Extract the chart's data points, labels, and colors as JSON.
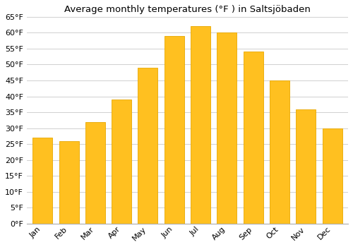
{
  "title": "Average monthly temperatures (°F ) in Saltsjöbaden",
  "months": [
    "Jan",
    "Feb",
    "Mar",
    "Apr",
    "May",
    "Jun",
    "Jul",
    "Aug",
    "Sep",
    "Oct",
    "Nov",
    "Dec"
  ],
  "values": [
    27,
    26,
    32,
    39,
    49,
    59,
    62,
    60,
    54,
    45,
    36,
    30
  ],
  "bar_color": "#FFC020",
  "bar_edge_color": "#E8A800",
  "ylim": [
    0,
    65
  ],
  "yticks": [
    0,
    5,
    10,
    15,
    20,
    25,
    30,
    35,
    40,
    45,
    50,
    55,
    60,
    65
  ],
  "ytick_labels": [
    "0°F",
    "5°F",
    "10°F",
    "15°F",
    "20°F",
    "25°F",
    "30°F",
    "35°F",
    "40°F",
    "45°F",
    "50°F",
    "55°F",
    "60°F",
    "65°F"
  ],
  "background_color": "#ffffff",
  "plot_bg_color": "#ffffff",
  "grid_color": "#d0d0d0",
  "title_fontsize": 9.5,
  "tick_fontsize": 8,
  "bar_width": 0.75
}
